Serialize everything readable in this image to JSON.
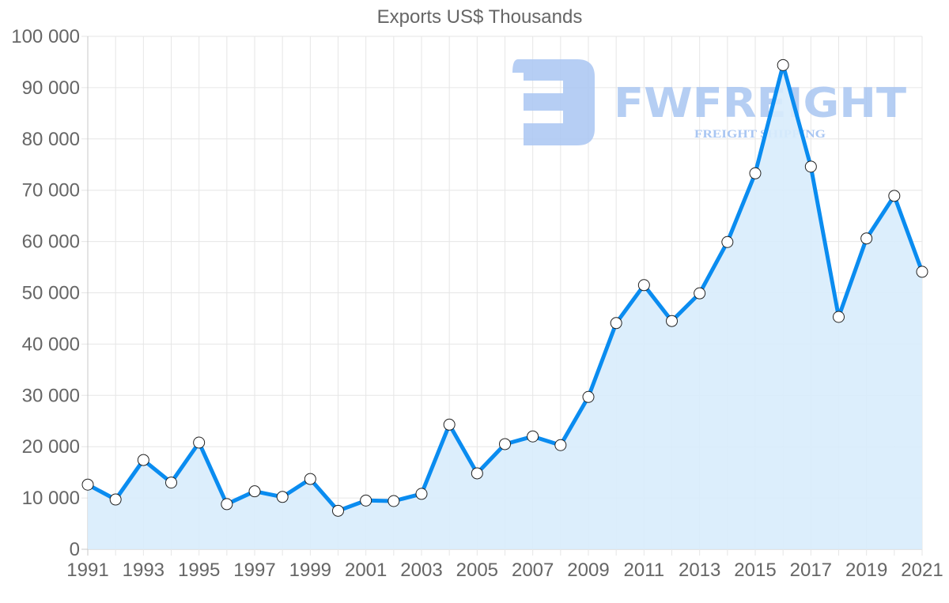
{
  "chart_data": {
    "type": "line",
    "title": "Exports US$ Thousands",
    "xlabel": "",
    "ylabel": "",
    "ylim": [
      0,
      100000
    ],
    "y_ticks": [
      "0",
      "10 000",
      "20 000",
      "30 000",
      "40 000",
      "50 000",
      "60 000",
      "70 000",
      "80 000",
      "90 000",
      "100 000"
    ],
    "x_tick_labels": [
      "1991",
      "1993",
      "1995",
      "1997",
      "1999",
      "2001",
      "2003",
      "2005",
      "2007",
      "2009",
      "2011",
      "2013",
      "2015",
      "2017",
      "2019",
      "2021"
    ],
    "grid": true,
    "fill": true,
    "legend": null,
    "x": [
      1991,
      1992,
      1993,
      1994,
      1995,
      1996,
      1997,
      1998,
      1999,
      2000,
      2001,
      2002,
      2003,
      2004,
      2005,
      2006,
      2007,
      2008,
      2009,
      2010,
      2011,
      2012,
      2013,
      2014,
      2015,
      2016,
      2017,
      2018,
      2019,
      2020,
      2021
    ],
    "series": [
      {
        "name": "Exports US$ Thousands",
        "color": "#0a8cf0",
        "fill_color": "#d8ecfc",
        "values": [
          12600,
          9700,
          17400,
          13000,
          20800,
          8800,
          11300,
          10200,
          13700,
          7500,
          9500,
          9400,
          10800,
          24300,
          14800,
          20500,
          22000,
          20300,
          29700,
          44100,
          51500,
          44500,
          49900,
          59900,
          73300,
          94400,
          74600,
          45300,
          60600,
          68900,
          54100
        ]
      }
    ]
  },
  "watermark": {
    "brand": "FWFREIGHT",
    "tagline": "FREIGHT SHIPPING",
    "color": "#a9c6f2"
  }
}
